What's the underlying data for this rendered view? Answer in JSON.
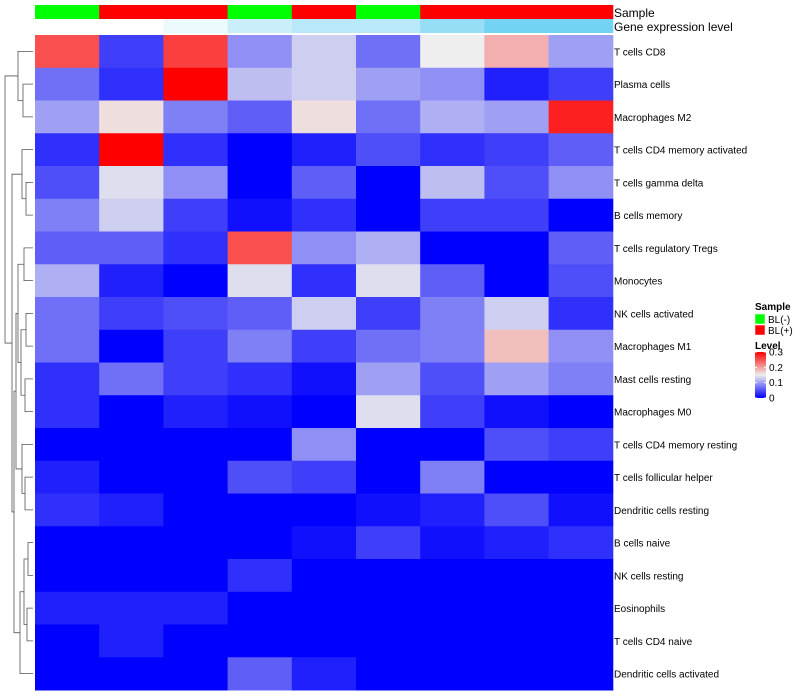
{
  "chart_data": {
    "type": "heatmap",
    "title": "",
    "annotation_labels": {
      "sample": "Sample",
      "expression": "Gene expression level"
    },
    "columns": [
      {
        "sample": "BL(-)",
        "expression": 0.0
      },
      {
        "sample": "BL(+)",
        "expression": 0.0
      },
      {
        "sample": "BL(+)",
        "expression": 0.1
      },
      {
        "sample": "BL(-)",
        "expression": 0.3
      },
      {
        "sample": "BL(+)",
        "expression": 0.4
      },
      {
        "sample": "BL(-)",
        "expression": 0.4
      },
      {
        "sample": "BL(+)",
        "expression": 0.6
      },
      {
        "sample": "BL(+)",
        "expression": 0.8
      },
      {
        "sample": "BL(+)",
        "expression": 0.8
      }
    ],
    "rows": [
      "T cells CD8",
      "Plasma cells",
      "Macrophages M2",
      "T cells CD4 memory activated",
      "T cells gamma delta",
      "B cells memory",
      "T cells regulatory  Tregs",
      "Monocytes",
      "NK cells activated",
      "Macrophages M1",
      "Mast cells resting",
      "Macrophages M0",
      "T cells CD4 memory resting",
      "T cells follicular helper",
      "Dendritic cells resting",
      "B cells naive",
      "NK cells resting",
      "Eosinophils",
      "T cells CD4 naive",
      "Dendritic cells activated"
    ],
    "values": [
      [
        0.25,
        0.04,
        0.26,
        0.09,
        0.13,
        0.07,
        0.15,
        0.19,
        0.1
      ],
      [
        0.07,
        0.03,
        0.3,
        0.12,
        0.13,
        0.1,
        0.09,
        0.02,
        0.04
      ],
      [
        0.1,
        0.16,
        0.08,
        0.06,
        0.16,
        0.07,
        0.11,
        0.1,
        0.28
      ],
      [
        0.03,
        0.3,
        0.03,
        0.0,
        0.02,
        0.05,
        0.03,
        0.04,
        0.06
      ],
      [
        0.05,
        0.14,
        0.09,
        0.0,
        0.06,
        0.0,
        0.12,
        0.05,
        0.09
      ],
      [
        0.08,
        0.13,
        0.04,
        0.01,
        0.03,
        0.0,
        0.04,
        0.04,
        0.0
      ],
      [
        0.06,
        0.06,
        0.03,
        0.25,
        0.09,
        0.11,
        0.0,
        0.0,
        0.06
      ],
      [
        0.11,
        0.02,
        0.0,
        0.14,
        0.03,
        0.14,
        0.06,
        0.0,
        0.05
      ],
      [
        0.07,
        0.04,
        0.05,
        0.06,
        0.13,
        0.04,
        0.08,
        0.13,
        0.03
      ],
      [
        0.07,
        0.0,
        0.04,
        0.08,
        0.04,
        0.07,
        0.08,
        0.18,
        0.09
      ],
      [
        0.03,
        0.07,
        0.04,
        0.03,
        0.01,
        0.1,
        0.05,
        0.1,
        0.08
      ],
      [
        0.03,
        0.0,
        0.02,
        0.01,
        0.0,
        0.14,
        0.04,
        0.01,
        0.0
      ],
      [
        0.0,
        0.0,
        0.0,
        0.0,
        0.09,
        0.0,
        0.0,
        0.05,
        0.04
      ],
      [
        0.02,
        0.0,
        0.0,
        0.05,
        0.04,
        0.0,
        0.08,
        0.0,
        0.0
      ],
      [
        0.03,
        0.02,
        0.0,
        0.0,
        0.0,
        0.01,
        0.02,
        0.05,
        0.01
      ],
      [
        0.0,
        0.0,
        0.0,
        0.0,
        0.01,
        0.04,
        0.01,
        0.02,
        0.03
      ],
      [
        0.0,
        0.0,
        0.0,
        0.03,
        0.0,
        0.0,
        0.0,
        0.0,
        0.0
      ],
      [
        0.02,
        0.02,
        0.02,
        0.0,
        0.0,
        0.0,
        0.0,
        0.0,
        0.0
      ],
      [
        0.0,
        0.02,
        0.0,
        0.0,
        0.0,
        0.0,
        0.0,
        0.0,
        0.0
      ],
      [
        0.0,
        0.0,
        0.0,
        0.06,
        0.02,
        0.0,
        0.0,
        0.0,
        0.0
      ]
    ],
    "color_scale": {
      "min": 0,
      "mid": 0.15,
      "max": 0.3,
      "low_color": "#0000ff",
      "mid_color": "#eeeeee",
      "high_color": "#ff0000"
    },
    "expression_scale": {
      "min": 0,
      "max": 1,
      "low_color": "#ffffff",
      "high_color": "#4fc8ef"
    },
    "legend": {
      "sample_title": "Sample",
      "sample_entries": [
        {
          "label": "BL(-)",
          "color": "#00ff00"
        },
        {
          "label": "BL(+)",
          "color": "#ff0000"
        }
      ],
      "level_title": "Level",
      "level_ticks": [
        {
          "label": "0.3",
          "value": 0.3
        },
        {
          "label": "0.2",
          "value": 0.2
        },
        {
          "label": "0.1",
          "value": 0.1
        },
        {
          "label": "0",
          "value": 0
        }
      ]
    },
    "dendrogram": "row clustering tree (left)"
  }
}
